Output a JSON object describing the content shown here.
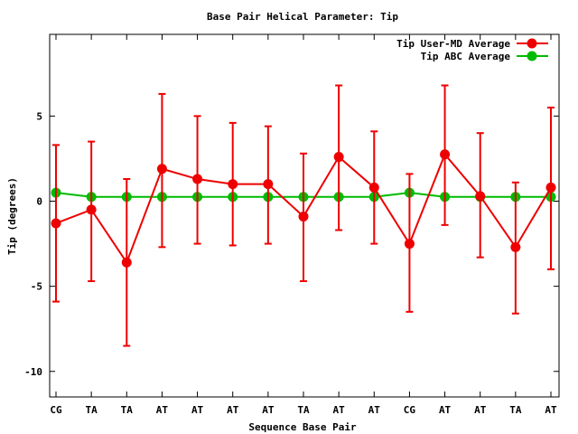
{
  "chart_data": {
    "type": "line",
    "title": "Base Pair Helical Parameter: Tip",
    "xlabel": "Sequence Base Pair",
    "ylabel": "Tip (degrees)",
    "categories": [
      "CG",
      "TA",
      "TA",
      "AT",
      "AT",
      "AT",
      "AT",
      "TA",
      "AT",
      "AT",
      "CG",
      "AT",
      "AT",
      "TA",
      "AT"
    ],
    "ylim": [
      -11.5,
      9.8
    ],
    "yticks": [
      {
        "value": 5,
        "label": "5"
      },
      {
        "value": 0,
        "label": "0"
      },
      {
        "value": -5,
        "label": "-5"
      },
      {
        "value": -10,
        "label": "-10"
      }
    ],
    "grid": false,
    "legend_position": "top-right",
    "series": [
      {
        "name": "Tip User-MD Average",
        "color": "#ee0000",
        "values": [
          -1.3,
          -0.5,
          -3.6,
          1.9,
          1.3,
          1.0,
          1.0,
          -0.9,
          2.6,
          0.8,
          -2.5,
          2.75,
          0.3,
          -2.7,
          0.8
        ],
        "error_low": [
          -5.9,
          -4.7,
          -8.5,
          -2.7,
          -2.5,
          -2.6,
          -2.5,
          -4.7,
          -1.7,
          -2.5,
          -6.5,
          -1.4,
          -3.3,
          -6.6,
          -4.0
        ],
        "error_high": [
          3.3,
          3.5,
          1.3,
          6.3,
          5.0,
          4.6,
          4.4,
          2.8,
          6.8,
          4.1,
          1.6,
          6.8,
          4.0,
          1.1,
          5.5
        ]
      },
      {
        "name": "Tip ABC Average",
        "color": "#00bb00",
        "values": [
          0.5,
          0.25,
          0.25,
          0.25,
          0.25,
          0.25,
          0.25,
          0.25,
          0.25,
          0.25,
          0.5,
          0.25,
          0.25,
          0.25,
          0.25
        ]
      }
    ]
  }
}
